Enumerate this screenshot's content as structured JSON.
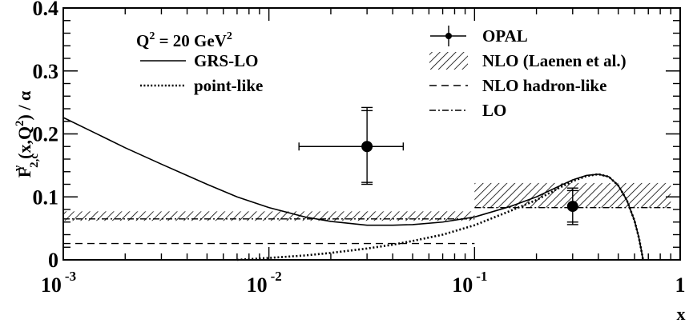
{
  "chart_data": {
    "type": "line",
    "x_scale": "log",
    "xlim": [
      0.001,
      1
    ],
    "ylim": [
      0,
      0.4
    ],
    "xlabel": "x",
    "ylabel": "F2,c(x,Q2) / α",
    "ylabel_parts": {
      "F": "F",
      "sup": "γ",
      "sub": "2,c",
      "args": "(x,Q",
      "args_sup": "2",
      "args_end": ") / α"
    },
    "x_ticks": [
      {
        "value": 0.001,
        "base": "10",
        "exp": "-3"
      },
      {
        "value": 0.01,
        "base": "10",
        "exp": "-2"
      },
      {
        "value": 0.1,
        "base": "10",
        "exp": "-1"
      },
      {
        "value": 1,
        "base": "1",
        "exp": ""
      }
    ],
    "y_ticks": [
      {
        "value": 0,
        "label": "0"
      },
      {
        "value": 0.1,
        "label": "0.1"
      },
      {
        "value": 0.2,
        "label": "0.2"
      },
      {
        "value": 0.3,
        "label": "0.3"
      },
      {
        "value": 0.4,
        "label": "0.4"
      }
    ],
    "annotation": {
      "main": "Q",
      "sup1": "2",
      "mid": " = 20 GeV",
      "sup2": "2"
    },
    "legend": [
      {
        "key": "grs_lo",
        "label": "GRS-LO",
        "style": "solid"
      },
      {
        "key": "point_like",
        "label": "point-like",
        "style": "dotted"
      },
      {
        "key": "opal",
        "label": "OPAL",
        "style": "marker"
      },
      {
        "key": "nlo_band",
        "label": "NLO (Laenen et al.)",
        "style": "hatch"
      },
      {
        "key": "nlo_hadron",
        "label": "NLO hadron-like",
        "style": "dashed"
      },
      {
        "key": "lo",
        "label": "LO",
        "style": "dashdot"
      }
    ],
    "series": [
      {
        "key": "grs_lo",
        "name": "GRS-LO",
        "style": "solid",
        "x": [
          0.001,
          0.0015,
          0.002,
          0.003,
          0.004,
          0.005,
          0.007,
          0.01,
          0.015,
          0.02,
          0.03,
          0.04,
          0.05,
          0.07,
          0.1,
          0.15,
          0.2,
          0.25,
          0.3,
          0.35,
          0.4,
          0.45,
          0.5,
          0.55,
          0.6,
          0.63,
          0.65,
          0.66
        ],
        "y": [
          0.226,
          0.198,
          0.178,
          0.152,
          0.134,
          0.12,
          0.1,
          0.083,
          0.068,
          0.061,
          0.055,
          0.055,
          0.056,
          0.06,
          0.068,
          0.085,
          0.1,
          0.115,
          0.127,
          0.134,
          0.136,
          0.132,
          0.118,
          0.095,
          0.062,
          0.035,
          0.012,
          0.0
        ]
      },
      {
        "key": "point_like",
        "name": "point-like",
        "style": "dotted",
        "x": [
          0.007,
          0.01,
          0.015,
          0.02,
          0.03,
          0.04,
          0.05,
          0.07,
          0.1,
          0.15,
          0.2,
          0.25,
          0.3,
          0.35,
          0.4,
          0.45,
          0.5,
          0.55,
          0.6,
          0.63,
          0.65,
          0.66
        ],
        "y": [
          0.0,
          0.003,
          0.007,
          0.011,
          0.018,
          0.024,
          0.03,
          0.04,
          0.055,
          0.078,
          0.095,
          0.112,
          0.125,
          0.133,
          0.136,
          0.132,
          0.118,
          0.095,
          0.062,
          0.035,
          0.012,
          0.0
        ]
      },
      {
        "key": "lo",
        "name": "LO",
        "style": "dashdot",
        "segments": [
          {
            "x": [
              0.001,
              0.1
            ],
            "y": [
              0.065,
              0.065
            ]
          },
          {
            "x": [
              0.1,
              0.9
            ],
            "y": [
              0.083,
              0.083
            ]
          }
        ]
      },
      {
        "key": "nlo_hadron",
        "name": "NLO hadron-like",
        "style": "dashed",
        "segments": [
          {
            "x": [
              0.001,
              0.1
            ],
            "y": [
              0.026,
              0.026
            ]
          },
          {
            "x": [
              0.7,
              0.9
            ],
            "y": [
              0.0,
              0.0
            ]
          }
        ]
      }
    ],
    "bands": [
      {
        "key": "nlo_band",
        "name": "NLO (Laenen et al.)",
        "regions": [
          {
            "x": [
              0.001,
              0.1
            ],
            "y_low": 0.062,
            "y_high": 0.077
          },
          {
            "x": [
              0.1,
              0.9
            ],
            "y_low": 0.083,
            "y_high": 0.122
          }
        ]
      }
    ],
    "points": [
      {
        "key": "opal",
        "name": "OPAL",
        "x": 0.03,
        "y": 0.18,
        "x_low": 0.014,
        "x_high": 0.045,
        "y_low": 0.12,
        "y_high": 0.242,
        "y_low_syst": 0.123,
        "y_high_syst": 0.237
      },
      {
        "key": "opal",
        "name": "OPAL",
        "x": 0.3,
        "y": 0.085,
        "x_low": 0.3,
        "x_high": 0.3,
        "y_low": 0.056,
        "y_high": 0.114,
        "y_low_syst": 0.06,
        "y_high_syst": 0.11
      }
    ]
  }
}
